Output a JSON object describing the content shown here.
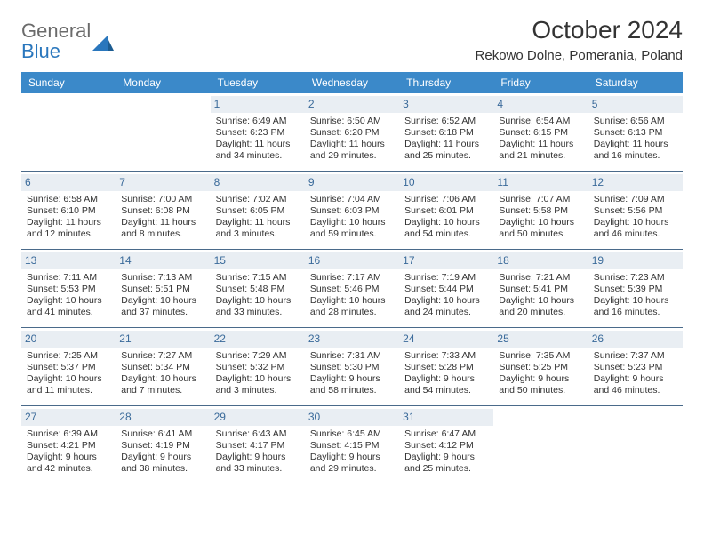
{
  "brand": {
    "word1": "General",
    "word2": "Blue"
  },
  "title": "October 2024",
  "location": "Rekowo Dolne, Pomerania, Poland",
  "colors": {
    "header_bg": "#3b89c9",
    "header_text": "#ffffff",
    "daynum_bg": "#e9eef3",
    "daynum_text": "#3a6a9a",
    "border": "#4a6a8a",
    "body_text": "#333333",
    "brand_gray": "#6b6b6b",
    "brand_blue": "#2a77bd"
  },
  "weekdays": [
    "Sunday",
    "Monday",
    "Tuesday",
    "Wednesday",
    "Thursday",
    "Friday",
    "Saturday"
  ],
  "weeks": [
    [
      {
        "empty": true
      },
      {
        "empty": true
      },
      {
        "day": "1",
        "sunrise": "Sunrise: 6:49 AM",
        "sunset": "Sunset: 6:23 PM",
        "daylight": "Daylight: 11 hours and 34 minutes."
      },
      {
        "day": "2",
        "sunrise": "Sunrise: 6:50 AM",
        "sunset": "Sunset: 6:20 PM",
        "daylight": "Daylight: 11 hours and 29 minutes."
      },
      {
        "day": "3",
        "sunrise": "Sunrise: 6:52 AM",
        "sunset": "Sunset: 6:18 PM",
        "daylight": "Daylight: 11 hours and 25 minutes."
      },
      {
        "day": "4",
        "sunrise": "Sunrise: 6:54 AM",
        "sunset": "Sunset: 6:15 PM",
        "daylight": "Daylight: 11 hours and 21 minutes."
      },
      {
        "day": "5",
        "sunrise": "Sunrise: 6:56 AM",
        "sunset": "Sunset: 6:13 PM",
        "daylight": "Daylight: 11 hours and 16 minutes."
      }
    ],
    [
      {
        "day": "6",
        "sunrise": "Sunrise: 6:58 AM",
        "sunset": "Sunset: 6:10 PM",
        "daylight": "Daylight: 11 hours and 12 minutes."
      },
      {
        "day": "7",
        "sunrise": "Sunrise: 7:00 AM",
        "sunset": "Sunset: 6:08 PM",
        "daylight": "Daylight: 11 hours and 8 minutes."
      },
      {
        "day": "8",
        "sunrise": "Sunrise: 7:02 AM",
        "sunset": "Sunset: 6:05 PM",
        "daylight": "Daylight: 11 hours and 3 minutes."
      },
      {
        "day": "9",
        "sunrise": "Sunrise: 7:04 AM",
        "sunset": "Sunset: 6:03 PM",
        "daylight": "Daylight: 10 hours and 59 minutes."
      },
      {
        "day": "10",
        "sunrise": "Sunrise: 7:06 AM",
        "sunset": "Sunset: 6:01 PM",
        "daylight": "Daylight: 10 hours and 54 minutes."
      },
      {
        "day": "11",
        "sunrise": "Sunrise: 7:07 AM",
        "sunset": "Sunset: 5:58 PM",
        "daylight": "Daylight: 10 hours and 50 minutes."
      },
      {
        "day": "12",
        "sunrise": "Sunrise: 7:09 AM",
        "sunset": "Sunset: 5:56 PM",
        "daylight": "Daylight: 10 hours and 46 minutes."
      }
    ],
    [
      {
        "day": "13",
        "sunrise": "Sunrise: 7:11 AM",
        "sunset": "Sunset: 5:53 PM",
        "daylight": "Daylight: 10 hours and 41 minutes."
      },
      {
        "day": "14",
        "sunrise": "Sunrise: 7:13 AM",
        "sunset": "Sunset: 5:51 PM",
        "daylight": "Daylight: 10 hours and 37 minutes."
      },
      {
        "day": "15",
        "sunrise": "Sunrise: 7:15 AM",
        "sunset": "Sunset: 5:48 PM",
        "daylight": "Daylight: 10 hours and 33 minutes."
      },
      {
        "day": "16",
        "sunrise": "Sunrise: 7:17 AM",
        "sunset": "Sunset: 5:46 PM",
        "daylight": "Daylight: 10 hours and 28 minutes."
      },
      {
        "day": "17",
        "sunrise": "Sunrise: 7:19 AM",
        "sunset": "Sunset: 5:44 PM",
        "daylight": "Daylight: 10 hours and 24 minutes."
      },
      {
        "day": "18",
        "sunrise": "Sunrise: 7:21 AM",
        "sunset": "Sunset: 5:41 PM",
        "daylight": "Daylight: 10 hours and 20 minutes."
      },
      {
        "day": "19",
        "sunrise": "Sunrise: 7:23 AM",
        "sunset": "Sunset: 5:39 PM",
        "daylight": "Daylight: 10 hours and 16 minutes."
      }
    ],
    [
      {
        "day": "20",
        "sunrise": "Sunrise: 7:25 AM",
        "sunset": "Sunset: 5:37 PM",
        "daylight": "Daylight: 10 hours and 11 minutes."
      },
      {
        "day": "21",
        "sunrise": "Sunrise: 7:27 AM",
        "sunset": "Sunset: 5:34 PM",
        "daylight": "Daylight: 10 hours and 7 minutes."
      },
      {
        "day": "22",
        "sunrise": "Sunrise: 7:29 AM",
        "sunset": "Sunset: 5:32 PM",
        "daylight": "Daylight: 10 hours and 3 minutes."
      },
      {
        "day": "23",
        "sunrise": "Sunrise: 7:31 AM",
        "sunset": "Sunset: 5:30 PM",
        "daylight": "Daylight: 9 hours and 58 minutes."
      },
      {
        "day": "24",
        "sunrise": "Sunrise: 7:33 AM",
        "sunset": "Sunset: 5:28 PM",
        "daylight": "Daylight: 9 hours and 54 minutes."
      },
      {
        "day": "25",
        "sunrise": "Sunrise: 7:35 AM",
        "sunset": "Sunset: 5:25 PM",
        "daylight": "Daylight: 9 hours and 50 minutes."
      },
      {
        "day": "26",
        "sunrise": "Sunrise: 7:37 AM",
        "sunset": "Sunset: 5:23 PM",
        "daylight": "Daylight: 9 hours and 46 minutes."
      }
    ],
    [
      {
        "day": "27",
        "sunrise": "Sunrise: 6:39 AM",
        "sunset": "Sunset: 4:21 PM",
        "daylight": "Daylight: 9 hours and 42 minutes."
      },
      {
        "day": "28",
        "sunrise": "Sunrise: 6:41 AM",
        "sunset": "Sunset: 4:19 PM",
        "daylight": "Daylight: 9 hours and 38 minutes."
      },
      {
        "day": "29",
        "sunrise": "Sunrise: 6:43 AM",
        "sunset": "Sunset: 4:17 PM",
        "daylight": "Daylight: 9 hours and 33 minutes."
      },
      {
        "day": "30",
        "sunrise": "Sunrise: 6:45 AM",
        "sunset": "Sunset: 4:15 PM",
        "daylight": "Daylight: 9 hours and 29 minutes."
      },
      {
        "day": "31",
        "sunrise": "Sunrise: 6:47 AM",
        "sunset": "Sunset: 4:12 PM",
        "daylight": "Daylight: 9 hours and 25 minutes."
      },
      {
        "empty": true
      },
      {
        "empty": true
      }
    ]
  ]
}
